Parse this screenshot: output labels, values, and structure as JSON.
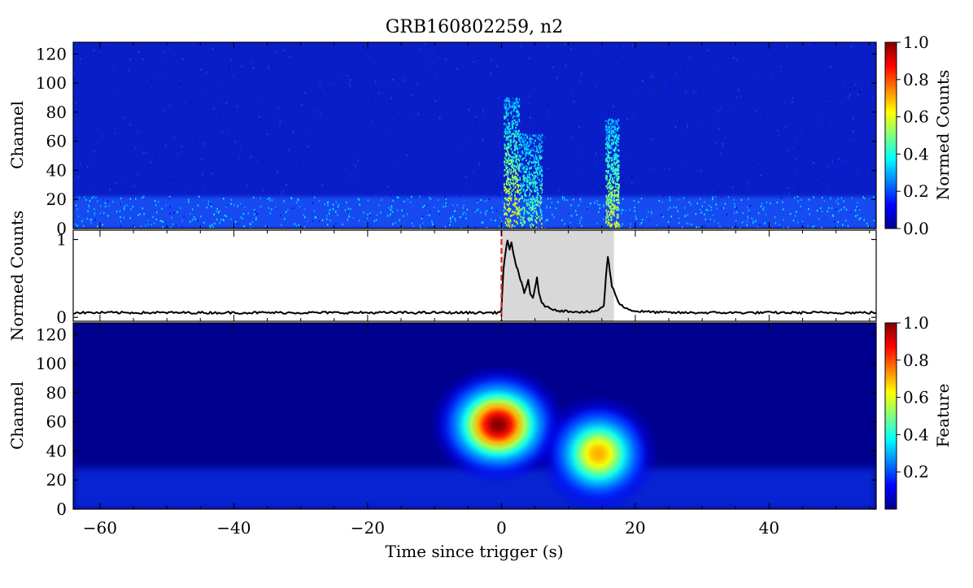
{
  "chart_data": [
    {
      "type": "heatmap",
      "panel": "spectrogram",
      "title": "GRB160802259, n2",
      "xlabel": "",
      "ylabel": "Channel",
      "xlim": [
        -64,
        56
      ],
      "ylim": [
        0,
        128
      ],
      "yticks": [
        0,
        20,
        40,
        60,
        80,
        100,
        120
      ],
      "colorbar": {
        "label": "Normed Counts",
        "range": [
          0.0,
          1.0
        ],
        "ticks": [
          "0.0",
          "0.2",
          "0.4",
          "0.6",
          "0.8",
          "1.0"
        ]
      },
      "background_level": 0.1,
      "low_channel_band": {
        "channels": [
          0,
          22
        ],
        "level": 0.28
      },
      "bursts": [
        {
          "t_start": 0.3,
          "t_end": 2.6,
          "channel_max": 90,
          "level": 0.55
        },
        {
          "t_start": 2.6,
          "t_end": 6.0,
          "channel_max": 65,
          "level": 0.4
        },
        {
          "t_start": 15.5,
          "t_end": 17.5,
          "channel_max": 75,
          "level": 0.5
        }
      ]
    },
    {
      "type": "line",
      "panel": "light-curve",
      "xlabel": "",
      "ylabel": "Normed Counts",
      "xlim": [
        -64,
        56
      ],
      "ylim": [
        -0.05,
        1.12
      ],
      "yticks": [
        0,
        1
      ],
      "trigger_time": 0,
      "shaded_interval": [
        0,
        16.8
      ],
      "series": [
        {
          "x": [
            -64,
            -60,
            -50,
            -40,
            -30,
            -20,
            -10,
            -2,
            -0.5,
            0,
            0.3,
            0.6,
            0.9,
            1.2,
            1.5,
            1.8,
            2.1,
            2.4,
            2.7,
            3.0,
            3.4,
            3.7,
            4.0,
            4.3,
            4.7,
            5.0,
            5.3,
            5.6,
            6.0,
            6.5,
            7,
            8,
            9,
            10,
            12,
            14,
            15.3,
            15.6,
            15.9,
            16.2,
            16.5,
            17,
            17.5,
            18,
            19,
            20,
            22,
            25,
            30,
            40,
            50,
            56
          ],
          "y": [
            0.06,
            0.06,
            0.06,
            0.06,
            0.06,
            0.06,
            0.06,
            0.06,
            0.06,
            0.1,
            0.62,
            0.82,
            1.0,
            0.88,
            0.95,
            0.8,
            0.7,
            0.62,
            0.52,
            0.45,
            0.3,
            0.38,
            0.48,
            0.3,
            0.25,
            0.38,
            0.5,
            0.3,
            0.2,
            0.15,
            0.12,
            0.1,
            0.08,
            0.08,
            0.07,
            0.07,
            0.15,
            0.5,
            0.78,
            0.6,
            0.4,
            0.3,
            0.2,
            0.15,
            0.1,
            0.08,
            0.07,
            0.06,
            0.06,
            0.06,
            0.06,
            0.06
          ]
        }
      ]
    },
    {
      "type": "heatmap",
      "panel": "feature-map",
      "xlabel": "Time since trigger (s)",
      "ylabel": "Channel",
      "xlim": [
        -64,
        56
      ],
      "ylim": [
        0,
        128
      ],
      "xticks": [
        -60,
        -40,
        -20,
        0,
        20,
        40
      ],
      "xtick_labels": [
        "−60",
        "−40",
        "−20",
        "0",
        "20",
        "40"
      ],
      "yticks": [
        0,
        20,
        40,
        60,
        80,
        100,
        120
      ],
      "colorbar": {
        "label": "Feature",
        "range": [
          0.0,
          1.0
        ],
        "ticks": [
          "0.2",
          "0.4",
          "0.6",
          "0.8",
          "1.0"
        ]
      },
      "blobs": [
        {
          "t_center": -0.5,
          "channel_center": 58,
          "t_sigma": 4.2,
          "channel_sigma": 17,
          "peak": 1.0
        },
        {
          "t_center": 14.5,
          "channel_center": 38,
          "t_sigma": 3.8,
          "channel_sigma": 17,
          "peak": 0.68
        }
      ]
    }
  ],
  "colors": {
    "trigger_line": "#d62728",
    "shade": "#d8d8d8",
    "curve": "#000000"
  }
}
